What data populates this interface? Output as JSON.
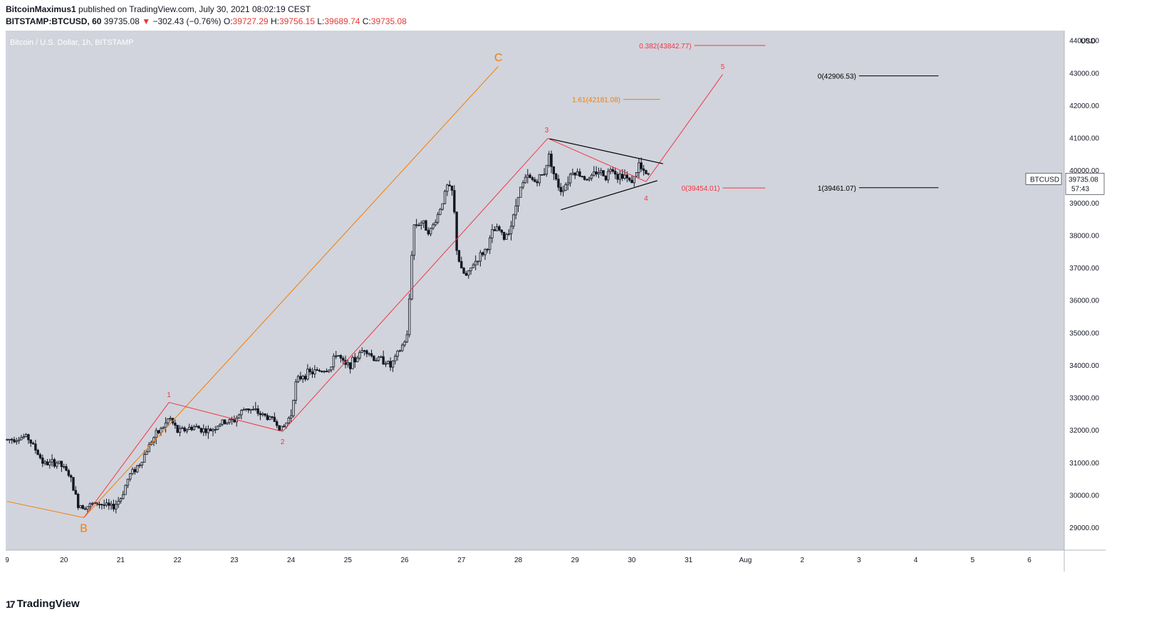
{
  "header": {
    "author": "BitcoinMaximus1",
    "published_text": "published on TradingView.com, July 30, 2021 08:02:19 CEST",
    "symbol": "BITSTAMP:BTCUSD, 60",
    "last": "39735.08",
    "arrow": "▼",
    "change": "−302.43 (−0.76%)",
    "o_label": "O:",
    "o_value": "39727.29",
    "h_label": "H:",
    "h_value": "39756.15",
    "l_label": "L:",
    "l_value": "39689.74",
    "c_label": "C:",
    "c_value": "39735.08"
  },
  "footer": {
    "brand": "TradingView",
    "logo_icon": "tradingview-logo-icon"
  },
  "colors": {
    "chart_bg": "#d1d4dc",
    "axis_bg": "#ffffff",
    "candle": "#131722",
    "wave_red": "#f23645",
    "wave_orange": "#f57c00",
    "triangle": "#000000"
  },
  "chart_data": {
    "type": "candlestick",
    "title": "Bitcoin / U.S. Dollar, 1h, BITSTAMP",
    "currency_label": "USD",
    "y_ticks": [
      29000,
      30000,
      31000,
      32000,
      33000,
      34000,
      35000,
      36000,
      37000,
      38000,
      39000,
      40000,
      41000,
      42000,
      43000,
      44000
    ],
    "y_tick_labels": [
      "29000.00",
      "30000.00",
      "31000.00",
      "32000.00",
      "33000.00",
      "34000.00",
      "35000.00",
      "36000.00",
      "37000.00",
      "38000.00",
      "39000.00",
      "40000.00",
      "41000.00",
      "42000.00",
      "43000.00",
      "44000.00"
    ],
    "ylim": [
      28300,
      44300
    ],
    "xlim": [
      19.0,
      7.6
    ],
    "x_ticks": [
      {
        "day": 19.0,
        "label": "9"
      },
      {
        "day": 20.0,
        "label": "20"
      },
      {
        "day": 21.0,
        "label": "21"
      },
      {
        "day": 22.0,
        "label": "22"
      },
      {
        "day": 23.0,
        "label": "23"
      },
      {
        "day": 24.0,
        "label": "24"
      },
      {
        "day": 25.0,
        "label": "25"
      },
      {
        "day": 26.0,
        "label": "26"
      },
      {
        "day": 27.0,
        "label": "27"
      },
      {
        "day": 28.0,
        "label": "28"
      },
      {
        "day": 29.0,
        "label": "29"
      },
      {
        "day": 30.0,
        "label": "30"
      },
      {
        "day": 31.0,
        "label": "31"
      },
      {
        "day": 32.0,
        "label": "Aug"
      },
      {
        "day": 33.0,
        "label": "2"
      },
      {
        "day": 34.0,
        "label": "3"
      },
      {
        "day": 35.0,
        "label": "4"
      },
      {
        "day": 36.0,
        "label": "5"
      },
      {
        "day": 37.0,
        "label": "6"
      }
    ],
    "price_path": [
      [
        19.0,
        31700
      ],
      [
        19.35,
        31800
      ],
      [
        19.5,
        31400
      ],
      [
        19.65,
        30950
      ],
      [
        19.9,
        31000
      ],
      [
        20.1,
        30600
      ],
      [
        20.25,
        29700
      ],
      [
        20.4,
        29650
      ],
      [
        20.6,
        29750
      ],
      [
        20.85,
        29600
      ],
      [
        21.0,
        29900
      ],
      [
        21.15,
        30600
      ],
      [
        21.35,
        31000
      ],
      [
        21.55,
        31700
      ],
      [
        21.8,
        32200
      ],
      [
        21.85,
        32400
      ],
      [
        22.0,
        31950
      ],
      [
        22.3,
        32100
      ],
      [
        22.55,
        31950
      ],
      [
        22.75,
        32200
      ],
      [
        23.0,
        32300
      ],
      [
        23.2,
        32700
      ],
      [
        23.45,
        32500
      ],
      [
        23.7,
        32300
      ],
      [
        23.85,
        32000
      ],
      [
        24.0,
        32500
      ],
      [
        24.07,
        33400
      ],
      [
        24.2,
        33700
      ],
      [
        24.45,
        33800
      ],
      [
        24.7,
        33900
      ],
      [
        24.8,
        34400
      ],
      [
        24.95,
        33950
      ],
      [
        25.1,
        34100
      ],
      [
        25.3,
        34550
      ],
      [
        25.45,
        34200
      ],
      [
        25.65,
        34150
      ],
      [
        25.75,
        33950
      ],
      [
        25.9,
        34400
      ],
      [
        26.05,
        34900
      ],
      [
        26.1,
        36600
      ],
      [
        26.15,
        38300
      ],
      [
        26.3,
        38400
      ],
      [
        26.45,
        38100
      ],
      [
        26.6,
        38700
      ],
      [
        26.75,
        39500
      ],
      [
        26.85,
        39300
      ],
      [
        26.92,
        37500
      ],
      [
        27.0,
        36900
      ],
      [
        27.1,
        36700
      ],
      [
        27.2,
        37100
      ],
      [
        27.35,
        37400
      ],
      [
        27.45,
        37600
      ],
      [
        27.55,
        38100
      ],
      [
        27.65,
        38200
      ],
      [
        27.75,
        37900
      ],
      [
        27.9,
        38400
      ],
      [
        28.0,
        39300
      ],
      [
        28.15,
        39800
      ],
      [
        28.3,
        39650
      ],
      [
        28.45,
        39900
      ],
      [
        28.55,
        40500
      ],
      [
        28.65,
        39700
      ],
      [
        28.75,
        39400
      ],
      [
        28.85,
        39600
      ],
      [
        28.95,
        40000
      ],
      [
        29.1,
        39850
      ],
      [
        29.25,
        39700
      ],
      [
        29.4,
        40000
      ],
      [
        29.55,
        39800
      ],
      [
        29.65,
        40150
      ],
      [
        29.75,
        39800
      ],
      [
        29.85,
        39900
      ],
      [
        29.95,
        39650
      ],
      [
        30.05,
        39750
      ],
      [
        30.12,
        40200
      ],
      [
        30.2,
        39900
      ],
      [
        30.28,
        39850
      ],
      [
        30.32,
        39735
      ]
    ],
    "wave_labels": [
      {
        "label": "1",
        "day": 21.85,
        "price": 33100,
        "color": "red"
      },
      {
        "label": "2",
        "day": 23.85,
        "price": 31650,
        "color": "red"
      },
      {
        "label": "3",
        "day": 28.5,
        "price": 41250,
        "color": "red"
      },
      {
        "label": "4",
        "day": 30.25,
        "price": 39150,
        "color": "red"
      },
      {
        "label": "5",
        "day": 31.6,
        "price": 43200,
        "color": "red"
      },
      {
        "label": "B",
        "day": 20.35,
        "price": 28950,
        "color": "orange"
      },
      {
        "label": "C",
        "day": 27.65,
        "price": 43450,
        "color": "orange"
      }
    ],
    "wave_red_path": [
      [
        20.35,
        29300
      ],
      [
        21.85,
        32850
      ],
      [
        23.85,
        31950
      ],
      [
        28.52,
        40980
      ],
      [
        30.25,
        39650
      ],
      [
        31.6,
        42950
      ]
    ],
    "wave_orange_path": [
      [
        19.0,
        29800
      ],
      [
        20.35,
        29300
      ],
      [
        27.65,
        43200
      ]
    ],
    "triangle_upper": [
      [
        28.55,
        40970
      ],
      [
        30.55,
        40200
      ]
    ],
    "triangle_lower": [
      [
        28.75,
        38780
      ],
      [
        30.45,
        39680
      ]
    ],
    "levels": [
      {
        "label": "0.382(43842.77)",
        "price": 43842.77,
        "x1": 31.1,
        "x2": 32.35,
        "color": "red"
      },
      {
        "label": "0(42906.53)",
        "price": 42906.53,
        "x1": 34.0,
        "x2": 35.4,
        "color": "black"
      },
      {
        "label": "1.61(42181.08)",
        "price": 42181.08,
        "x1": 29.85,
        "x2": 30.5,
        "color": "orange"
      },
      {
        "label": "0(39454.01)",
        "price": 39454.01,
        "x1": 31.6,
        "x2": 32.35,
        "color": "red"
      },
      {
        "label": "1(39461.07)",
        "price": 39461.07,
        "x1": 34.0,
        "x2": 35.4,
        "color": "black"
      }
    ],
    "last_price_label": "BTCUSD",
    "last_price": "39735.08",
    "countdown": "57:43"
  }
}
